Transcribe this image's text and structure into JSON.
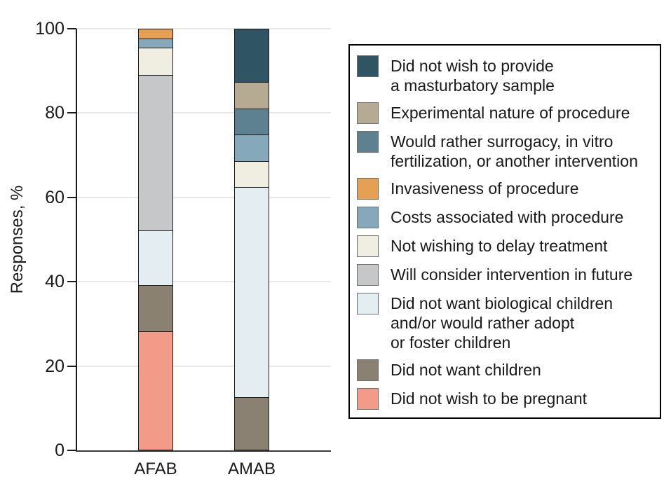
{
  "chart_data": {
    "type": "bar",
    "stacked": true,
    "title": "",
    "xlabel": "",
    "ylabel": "Responses, %",
    "ylim": [
      0,
      100
    ],
    "yticks": [
      0,
      20,
      40,
      60,
      80,
      100
    ],
    "grid": "horizontal",
    "legend_position": "right",
    "categories": [
      "AFAB",
      "AMAB"
    ],
    "series": [
      {
        "name": "Did not wish to provide a masturbatory sample",
        "color": "#2F5565",
        "values": [
          0,
          12.5
        ]
      },
      {
        "name": "Experimental nature of procedure",
        "color": "#B5AB93",
        "values": [
          0,
          6.25
        ]
      },
      {
        "name": "Would rather surrogacy, in vitro fertilization, or another intervention",
        "color": "#5D8191",
        "values": [
          0,
          6.25
        ]
      },
      {
        "name": "Invasiveness of procedure",
        "color": "#E5A054",
        "values": [
          2.2,
          0
        ]
      },
      {
        "name": "Costs associated with procedure",
        "color": "#85A9BA",
        "values": [
          2.2,
          6.25
        ]
      },
      {
        "name": "Not wishing to delay treatment",
        "color": "#EFEEE1",
        "values": [
          6.5,
          6.25
        ]
      },
      {
        "name": "Will consider intervention in future",
        "color": "#C6C7C9",
        "values": [
          37.0,
          0
        ]
      },
      {
        "name": "Did not want biological children and/or would rather adopt or foster children",
        "color": "#E4EDF2",
        "values": [
          13.0,
          50.0
        ]
      },
      {
        "name": "Did not want children",
        "color": "#8A8172",
        "values": [
          10.9,
          12.5
        ]
      },
      {
        "name": "Did not wish to be pregnant",
        "color": "#F29B88",
        "values": [
          28.2,
          0
        ]
      }
    ]
  },
  "legend": {
    "items": [
      {
        "series_index": 0,
        "lines": [
          "Did not wish to provide",
          "a masturbatory sample"
        ]
      },
      {
        "series_index": 1,
        "lines": [
          "Experimental nature of procedure"
        ]
      },
      {
        "series_index": 2,
        "lines": [
          "Would rather surrogacy, in vitro",
          "fertilization, or another intervention"
        ]
      },
      {
        "series_index": 3,
        "lines": [
          "Invasiveness of procedure"
        ]
      },
      {
        "series_index": 4,
        "lines": [
          "Costs associated with procedure"
        ]
      },
      {
        "series_index": 5,
        "lines": [
          "Not wishing to delay treatment"
        ]
      },
      {
        "series_index": 6,
        "lines": [
          "Will consider intervention in future"
        ]
      },
      {
        "series_index": 7,
        "lines": [
          "Did not want biological children",
          "and/or would rather adopt",
          "or foster children"
        ]
      },
      {
        "series_index": 8,
        "lines": [
          "Did not want children"
        ]
      },
      {
        "series_index": 9,
        "lines": [
          "Did not wish to be pregnant"
        ]
      }
    ]
  },
  "colors": {
    "axis": "#1a1a1a",
    "gridline": "#e8e8e8",
    "segment_border": "#1c1c1c",
    "legend_border": "#000000",
    "swatch_border": "#6f6f6f",
    "background": "#ffffff"
  }
}
